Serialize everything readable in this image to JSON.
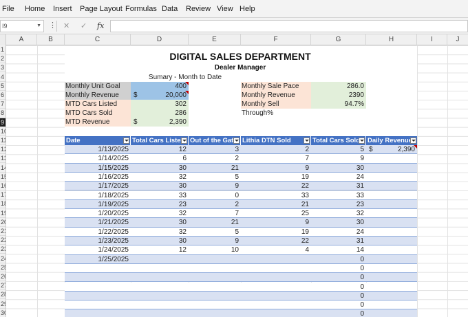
{
  "menu": [
    "File",
    "Home",
    "Insert",
    "Page Layout",
    "Formulas",
    "Data",
    "Review",
    "View",
    "Help"
  ],
  "formula_bar": {
    "name_box": "I9",
    "content": ""
  },
  "columns": [
    "A",
    "B",
    "C",
    "D",
    "E",
    "F",
    "G",
    "H",
    "I",
    "J"
  ],
  "rows": [
    "1",
    "2",
    "3",
    "4",
    "5",
    "6",
    "7",
    "8",
    "9",
    "10",
    "11",
    "12",
    "13",
    "14",
    "15",
    "16",
    "17",
    "18",
    "19",
    "20",
    "21",
    "22",
    "23",
    "24",
    "25",
    "26",
    "27",
    "28",
    "29",
    "30"
  ],
  "active_row": "9",
  "report": {
    "title": "DIGITAL SALES DEPARTMENT",
    "subtitle": "Dealer Manager",
    "summary_label": "Sumary - Month to Date"
  },
  "kpis": [
    {
      "label": "Monthly Unit Goal",
      "currency": "",
      "value": "400"
    },
    {
      "label": "Monthly Revenue Goal",
      "currency": "$",
      "value": "20,000"
    },
    {
      "label": "MTD Cars  Listed",
      "currency": "",
      "value": "302"
    },
    {
      "label": "MTD Cars Sold",
      "currency": "",
      "value": "286"
    },
    {
      "label": "MTD Revenue",
      "currency": "$",
      "value": "2,390"
    }
  ],
  "pace": [
    {
      "label": "Monthly Sale Pace",
      "value": "286.0"
    },
    {
      "label": "Monthly Revenue Pace",
      "value": "2390"
    },
    {
      "label": "Monthly Sell Through%",
      "value": "94.7%"
    }
  ],
  "table": {
    "headers": [
      "Date",
      "Total Cars Listed",
      "Out of the Gate",
      "Lithia DTN Sold",
      "Total Cars Sold",
      "Daily Revenue"
    ],
    "rows": [
      {
        "date": "1/13/2025",
        "listed": "12",
        "gate": "3",
        "lithia": "2",
        "sold": "5",
        "rev_cur": "$",
        "rev": "2,390"
      },
      {
        "date": "1/14/2025",
        "listed": "6",
        "gate": "2",
        "lithia": "7",
        "sold": "9",
        "rev_cur": "",
        "rev": ""
      },
      {
        "date": "1/15/2025",
        "listed": "30",
        "gate": "21",
        "lithia": "9",
        "sold": "30",
        "rev_cur": "",
        "rev": ""
      },
      {
        "date": "1/16/2025",
        "listed": "32",
        "gate": "5",
        "lithia": "19",
        "sold": "24",
        "rev_cur": "",
        "rev": ""
      },
      {
        "date": "1/17/2025",
        "listed": "30",
        "gate": "9",
        "lithia": "22",
        "sold": "31",
        "rev_cur": "",
        "rev": ""
      },
      {
        "date": "1/18/2025",
        "listed": "33",
        "gate": "0",
        "lithia": "33",
        "sold": "33",
        "rev_cur": "",
        "rev": ""
      },
      {
        "date": "1/19/2025",
        "listed": "23",
        "gate": "2",
        "lithia": "21",
        "sold": "23",
        "rev_cur": "",
        "rev": ""
      },
      {
        "date": "1/20/2025",
        "listed": "32",
        "gate": "7",
        "lithia": "25",
        "sold": "32",
        "rev_cur": "",
        "rev": ""
      },
      {
        "date": "1/21/2025",
        "listed": "30",
        "gate": "21",
        "lithia": "9",
        "sold": "30",
        "rev_cur": "",
        "rev": ""
      },
      {
        "date": "1/22/2025",
        "listed": "32",
        "gate": "5",
        "lithia": "19",
        "sold": "24",
        "rev_cur": "",
        "rev": ""
      },
      {
        "date": "1/23/2025",
        "listed": "30",
        "gate": "9",
        "lithia": "22",
        "sold": "31",
        "rev_cur": "",
        "rev": ""
      },
      {
        "date": "1/24/2025",
        "listed": "12",
        "gate": "10",
        "lithia": "4",
        "sold": "14",
        "rev_cur": "",
        "rev": ""
      },
      {
        "date": "1/25/2025",
        "listed": "",
        "gate": "",
        "lithia": "",
        "sold": "0",
        "rev_cur": "",
        "rev": ""
      },
      {
        "date": "",
        "listed": "",
        "gate": "",
        "lithia": "",
        "sold": "0",
        "rev_cur": "",
        "rev": ""
      },
      {
        "date": "",
        "listed": "",
        "gate": "",
        "lithia": "",
        "sold": "0",
        "rev_cur": "",
        "rev": ""
      },
      {
        "date": "",
        "listed": "",
        "gate": "",
        "lithia": "",
        "sold": "0",
        "rev_cur": "",
        "rev": ""
      },
      {
        "date": "",
        "listed": "",
        "gate": "",
        "lithia": "",
        "sold": "0",
        "rev_cur": "",
        "rev": ""
      },
      {
        "date": "",
        "listed": "",
        "gate": "",
        "lithia": "",
        "sold": "0",
        "rev_cur": "",
        "rev": ""
      },
      {
        "date": "",
        "listed": "",
        "gate": "",
        "lithia": "",
        "sold": "0",
        "rev_cur": "",
        "rev": ""
      }
    ]
  },
  "colors": {
    "header_blue": "#4472c4",
    "band_blue": "#d9e1f2",
    "kpi_gray": "#d0d0d0",
    "kpi_blue": "#9dc3e6",
    "kpi_peach": "#fce4d6",
    "kpi_green": "#e2efda"
  }
}
